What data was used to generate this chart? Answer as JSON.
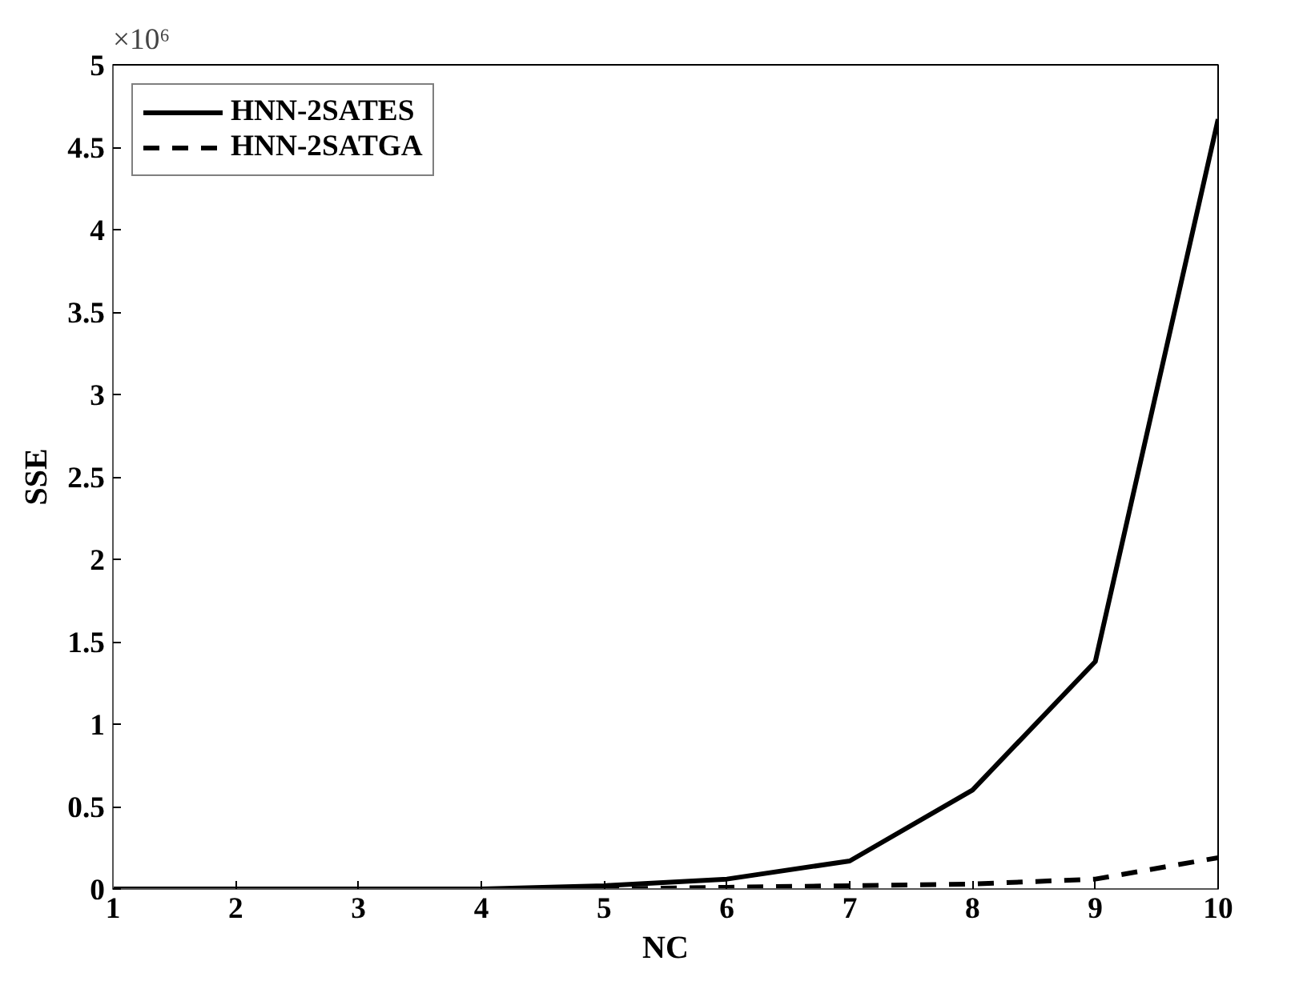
{
  "chart_data": {
    "type": "line",
    "xlabel": "NC",
    "ylabel": "SSE",
    "x": [
      1,
      2,
      3,
      4,
      5,
      6,
      7,
      8,
      9,
      10
    ],
    "series": [
      {
        "name": "HNN-2SATES",
        "color": "#000000",
        "line_style": "solid",
        "values": [
          0,
          0,
          0,
          0,
          0.02,
          0.06,
          0.17,
          0.6,
          1.38,
          4.67
        ]
      },
      {
        "name": "HNN-2SATGA",
        "color": "#000000",
        "line_style": "dashed",
        "values": [
          0,
          0,
          0,
          0,
          0,
          0.01,
          0.02,
          0.03,
          0.06,
          0.19
        ]
      }
    ],
    "xlim": [
      1,
      10
    ],
    "xticks": [
      1,
      2,
      3,
      4,
      5,
      6,
      7,
      8,
      9,
      10
    ],
    "ylim": [
      0,
      5
    ],
    "yticks": [
      0,
      0.5,
      1,
      1.5,
      2,
      2.5,
      3,
      3.5,
      4,
      4.5,
      5
    ],
    "annotations": [
      "×10⁶"
    ],
    "legend": "top left",
    "grid": false,
    "marker": "none"
  }
}
